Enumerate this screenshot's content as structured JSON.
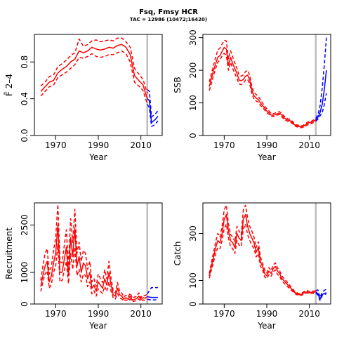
{
  "header": {
    "title": "Fsq, Fmsy HCR",
    "subtitle": "TAC = 12986 (10472;16420)"
  },
  "colors": {
    "historic": "#ff0000",
    "projection": "#0000ff",
    "divider": "#bebebe"
  },
  "chart_data": [
    {
      "type": "line",
      "ylabel": "F̄ 2–4",
      "xlabel": "Year",
      "xlim": [
        1960,
        2020
      ],
      "ylim": [
        0,
        1.1
      ],
      "xticks": [
        1970,
        1990,
        2010
      ],
      "yticks": [
        0,
        0.4,
        0.8
      ],
      "ytick_labels": [
        "0.0",
        "0.4",
        "0.8"
      ],
      "divider_year": 2013,
      "historic": {
        "x": [
          1963,
          1965,
          1967,
          1969,
          1971,
          1973,
          1975,
          1977,
          1979,
          1981,
          1983,
          1985,
          1987,
          1989,
          1991,
          1993,
          1995,
          1997,
          1999,
          2001,
          2003,
          2005,
          2007,
          2009,
          2011,
          2013
        ],
        "median": [
          0.48,
          0.53,
          0.58,
          0.6,
          0.68,
          0.72,
          0.75,
          0.8,
          0.83,
          0.92,
          0.9,
          0.92,
          0.96,
          0.94,
          0.93,
          0.94,
          0.96,
          0.95,
          0.98,
          0.99,
          0.96,
          0.88,
          0.65,
          0.6,
          0.55,
          0.4
        ],
        "low": [
          0.43,
          0.48,
          0.53,
          0.55,
          0.63,
          0.66,
          0.69,
          0.73,
          0.77,
          0.85,
          0.84,
          0.86,
          0.89,
          0.86,
          0.85,
          0.86,
          0.88,
          0.88,
          0.9,
          0.92,
          0.89,
          0.8,
          0.58,
          0.54,
          0.49,
          0.34
        ],
        "high": [
          0.54,
          0.58,
          0.64,
          0.66,
          0.75,
          0.78,
          0.82,
          0.87,
          0.9,
          1.05,
          0.97,
          0.99,
          1.03,
          1.04,
          1.02,
          1.03,
          1.04,
          1.03,
          1.06,
          1.06,
          1.02,
          0.96,
          0.73,
          0.67,
          0.61,
          0.46
        ]
      },
      "projection": {
        "x": [
          2013,
          2014,
          2015,
          2016,
          2017,
          2018
        ],
        "median": [
          0.4,
          0.38,
          0.14,
          0.16,
          0.18,
          0.21
        ],
        "low": [
          0.34,
          0.3,
          0.1,
          0.11,
          0.13,
          0.16
        ],
        "high": [
          0.5,
          0.48,
          0.2,
          0.22,
          0.24,
          0.27
        ]
      }
    },
    {
      "type": "line",
      "ylabel": "SSB",
      "xlabel": "Year",
      "xlim": [
        1960,
        2020
      ],
      "ylim": [
        0,
        310
      ],
      "xticks": [
        1970,
        1990,
        2010
      ],
      "yticks": [
        0,
        100,
        200,
        300
      ],
      "ytick_labels": [
        "0",
        "100",
        "200",
        "300"
      ],
      "divider_year": 2013,
      "historic": {
        "x": [
          1963,
          1964,
          1965,
          1966,
          1967,
          1968,
          1969,
          1970,
          1971,
          1972,
          1973,
          1974,
          1975,
          1976,
          1977,
          1978,
          1979,
          1980,
          1981,
          1982,
          1983,
          1984,
          1985,
          1986,
          1987,
          1988,
          1989,
          1990,
          1991,
          1992,
          1993,
          1994,
          1995,
          1996,
          1997,
          1998,
          1999,
          2000,
          2001,
          2002,
          2003,
          2004,
          2005,
          2006,
          2007,
          2008,
          2009,
          2010,
          2011,
          2012,
          2013
        ],
        "median": [
          150,
          175,
          200,
          220,
          240,
          245,
          258,
          270,
          265,
          215,
          240,
          220,
          205,
          190,
          170,
          168,
          172,
          182,
          185,
          170,
          138,
          122,
          115,
          110,
          100,
          92,
          84,
          75,
          70,
          63,
          62,
          64,
          67,
          68,
          63,
          55,
          50,
          47,
          45,
          40,
          33,
          30,
          28,
          26,
          28,
          32,
          36,
          40,
          40,
          44,
          48
        ],
        "low": [
          138,
          160,
          185,
          205,
          225,
          232,
          244,
          252,
          245,
          200,
          224,
          205,
          190,
          175,
          158,
          156,
          160,
          170,
          172,
          158,
          128,
          112,
          106,
          102,
          92,
          86,
          78,
          70,
          65,
          59,
          58,
          60,
          63,
          64,
          58,
          50,
          46,
          43,
          41,
          37,
          30,
          27,
          25,
          24,
          25,
          28,
          32,
          35,
          36,
          40,
          44
        ],
        "high": [
          164,
          190,
          215,
          240,
          262,
          268,
          280,
          292,
          290,
          235,
          260,
          240,
          222,
          206,
          184,
          182,
          186,
          196,
          200,
          184,
          150,
          132,
          126,
          120,
          110,
          100,
          90,
          82,
          76,
          68,
          67,
          69,
          72,
          73,
          68,
          60,
          55,
          51,
          49,
          44,
          36,
          33,
          31,
          29,
          31,
          35,
          40,
          44,
          44,
          48,
          52
        ]
      },
      "projection": {
        "x": [
          2013,
          2014,
          2015,
          2016,
          2017,
          2018
        ],
        "median": [
          48,
          56,
          70,
          95,
          140,
          200
        ],
        "low": [
          44,
          50,
          60,
          70,
          95,
          130
        ],
        "high": [
          52,
          64,
          90,
          145,
          215,
          300
        ]
      }
    },
    {
      "type": "line",
      "ylabel": "Recruitment",
      "xlabel": "Year",
      "xlim": [
        1960,
        2020
      ],
      "ylim": [
        0,
        3200
      ],
      "xticks": [
        1970,
        1990,
        2010
      ],
      "yticks": [
        0,
        1000,
        2500
      ],
      "ytick_labels": [
        "0",
        "1000",
        "2500"
      ],
      "divider_year": 2013,
      "historic": {
        "x": [
          1963,
          1964,
          1965,
          1966,
          1967,
          1968,
          1969,
          1970,
          1971,
          1972,
          1973,
          1974,
          1975,
          1976,
          1977,
          1978,
          1979,
          1980,
          1981,
          1982,
          1983,
          1984,
          1985,
          1986,
          1987,
          1988,
          1989,
          1990,
          1991,
          1992,
          1993,
          1994,
          1995,
          1996,
          1997,
          1998,
          1999,
          2000,
          2001,
          2002,
          2003,
          2004,
          2005,
          2006,
          2007,
          2008,
          2009,
          2010,
          2011,
          2012,
          2013
        ],
        "median": [
          550,
          900,
          1200,
          1350,
          700,
          900,
          1300,
          1600,
          2500,
          1000,
          1000,
          1400,
          1800,
          900,
          2100,
          1500,
          2400,
          1200,
          1500,
          1000,
          1300,
          1200,
          800,
          1000,
          500,
          600,
          400,
          700,
          600,
          500,
          800,
          600,
          1000,
          600,
          300,
          250,
          500,
          300,
          250,
          150,
          200,
          150,
          250,
          120,
          150,
          170,
          250,
          140,
          200,
          180,
          230
        ],
        "low": [
          400,
          700,
          950,
          1050,
          500,
          650,
          1000,
          1200,
          1900,
          700,
          750,
          1050,
          1350,
          650,
          1600,
          1100,
          1800,
          900,
          1100,
          700,
          950,
          900,
          550,
          700,
          320,
          420,
          250,
          480,
          400,
          330,
          560,
          400,
          700,
          400,
          200,
          160,
          330,
          200,
          160,
          90,
          130,
          90,
          160,
          70,
          90,
          110,
          160,
          80,
          130,
          110,
          150
        ],
        "high": [
          750,
          1200,
          1600,
          1750,
          950,
          1200,
          1700,
          2100,
          3150,
          1350,
          1300,
          1850,
          2350,
          1200,
          2700,
          1950,
          3000,
          1600,
          1950,
          1350,
          1700,
          1600,
          1100,
          1350,
          700,
          800,
          560,
          950,
          800,
          680,
          1080,
          800,
          1350,
          820,
          420,
          350,
          680,
          420,
          350,
          220,
          280,
          220,
          350,
          180,
          220,
          240,
          350,
          200,
          280,
          260,
          320
        ]
      },
      "projection": {
        "x": [
          2013,
          2014,
          2015,
          2016,
          2017,
          2018
        ],
        "median": [
          230,
          220,
          210,
          210,
          210,
          210
        ],
        "low": [
          150,
          140,
          130,
          130,
          130,
          130
        ],
        "high": [
          320,
          420,
          520,
          520,
          520,
          520
        ]
      }
    },
    {
      "type": "line",
      "ylabel": "Catch",
      "xlabel": "Year",
      "xlim": [
        1960,
        2020
      ],
      "ylim": [
        0,
        430
      ],
      "xticks": [
        1970,
        1990,
        2010
      ],
      "yticks": [
        0,
        100,
        300
      ],
      "ytick_labels": [
        "0",
        "100",
        "300"
      ],
      "divider_year": 2013,
      "historic": {
        "x": [
          1963,
          1964,
          1965,
          1966,
          1967,
          1968,
          1969,
          1970,
          1971,
          1972,
          1973,
          1974,
          1975,
          1976,
          1977,
          1978,
          1979,
          1980,
          1981,
          1982,
          1983,
          1984,
          1985,
          1986,
          1987,
          1988,
          1989,
          1990,
          1991,
          1992,
          1993,
          1994,
          1995,
          1996,
          1997,
          1998,
          1999,
          2000,
          2001,
          2002,
          2003,
          2004,
          2005,
          2006,
          2007,
          2008,
          2009,
          2010,
          2011,
          2012,
          2013
        ],
        "median": [
          120,
          160,
          200,
          240,
          270,
          260,
          300,
          360,
          380,
          310,
          270,
          260,
          240,
          300,
          280,
          270,
          360,
          380,
          330,
          300,
          280,
          260,
          220,
          240,
          180,
          160,
          130,
          120,
          140,
          130,
          150,
          160,
          140,
          130,
          110,
          100,
          90,
          80,
          70,
          60,
          50,
          45,
          40,
          40,
          45,
          50,
          52,
          48,
          50,
          50,
          52
        ],
        "low": [
          110,
          145,
          180,
          215,
          240,
          235,
          270,
          320,
          340,
          280,
          245,
          235,
          215,
          270,
          250,
          245,
          320,
          340,
          295,
          270,
          250,
          235,
          200,
          215,
          160,
          145,
          115,
          108,
          125,
          118,
          135,
          145,
          126,
          118,
          100,
          90,
          80,
          72,
          63,
          54,
          45,
          40,
          36,
          36,
          40,
          45,
          47,
          43,
          45,
          45,
          47
        ],
        "high": [
          130,
          175,
          220,
          265,
          300,
          285,
          330,
          400,
          420,
          340,
          295,
          285,
          265,
          330,
          310,
          295,
          400,
          420,
          365,
          330,
          310,
          285,
          240,
          265,
          200,
          175,
          145,
          132,
          155,
          142,
          165,
          175,
          154,
          142,
          120,
          110,
          100,
          88,
          77,
          66,
          55,
          50,
          44,
          44,
          50,
          55,
          57,
          53,
          55,
          55,
          57
        ]
      },
      "projection": {
        "x": [
          2013,
          2014,
          2015,
          2016,
          2017,
          2018
        ],
        "median": [
          52,
          44,
          20,
          40,
          45,
          48
        ],
        "low": [
          47,
          38,
          15,
          35,
          40,
          43
        ],
        "high": [
          57,
          60,
          28,
          50,
          58,
          63
        ]
      }
    }
  ]
}
